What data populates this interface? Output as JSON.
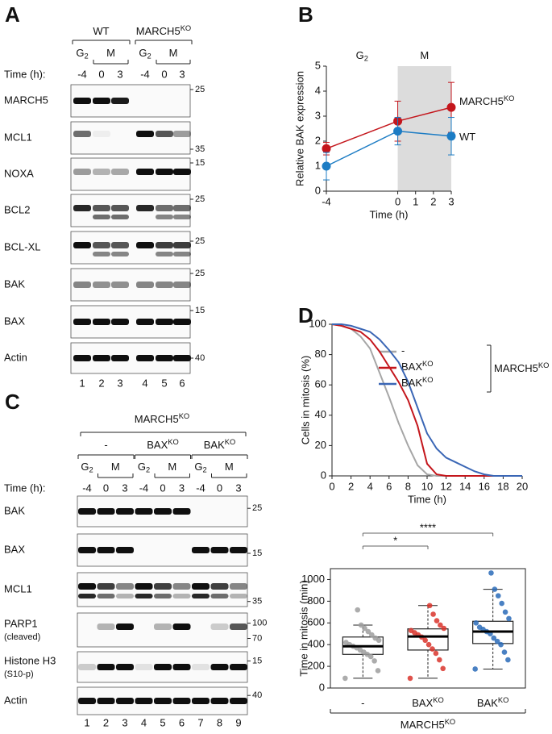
{
  "panel_a": {
    "label": "A",
    "groups": [
      {
        "text": "WT"
      },
      {
        "text": "MARCH5",
        "sup": "KO"
      }
    ],
    "phases": [
      {
        "text": "G",
        "sub": "2"
      },
      {
        "text": "M"
      },
      {
        "text": "G",
        "sub": "2"
      },
      {
        "text": "M"
      }
    ],
    "time_label": "Time (h):",
    "times": [
      -4,
      0,
      3,
      -4,
      0,
      3
    ],
    "rows": [
      {
        "name": "MARCH5",
        "markers": [
          25
        ]
      },
      {
        "name": "MCL1",
        "markers": [
          35
        ]
      },
      {
        "name": "NOXA",
        "markers": [
          15
        ]
      },
      {
        "name": "BCL2",
        "markers": [
          25
        ]
      },
      {
        "name": "BCL-XL",
        "markers": [
          25
        ]
      },
      {
        "name": "BAK",
        "markers": [
          25
        ]
      },
      {
        "name": "BAX",
        "markers": [
          15
        ]
      },
      {
        "name": "Actin",
        "markers": [
          40
        ]
      }
    ],
    "lanes": [
      1,
      2,
      3,
      4,
      5,
      6
    ]
  },
  "panel_c": {
    "label": "C",
    "header": {
      "text": "MARCH5",
      "sup": "KO"
    },
    "groups": [
      {
        "text": "-"
      },
      {
        "text": "BAX",
        "sup": "KO"
      },
      {
        "text": "BAK",
        "sup": "KO"
      }
    ],
    "phases": [
      {
        "text": "G",
        "sub": "2"
      },
      {
        "text": "M"
      },
      {
        "text": "G",
        "sub": "2"
      },
      {
        "text": "M"
      },
      {
        "text": "G",
        "sub": "2"
      },
      {
        "text": "M"
      }
    ],
    "time_label": "Time (h):",
    "times": [
      -4,
      0,
      3,
      -4,
      0,
      3,
      -4,
      0,
      3
    ],
    "rows": [
      {
        "name": "BAK",
        "markers": [
          25
        ]
      },
      {
        "name": "BAX",
        "markers": [
          15
        ]
      },
      {
        "name": "MCL1",
        "markers": [
          35
        ]
      },
      {
        "name": "PARP1",
        "note": "(cleaved)",
        "markers": [
          100,
          70
        ]
      },
      {
        "name": "Histone H3",
        "note": "(S10-p)",
        "markers": [
          15
        ]
      },
      {
        "name": "Actin",
        "markers": [
          40
        ]
      }
    ],
    "lanes": [
      1,
      2,
      3,
      4,
      5,
      6,
      7,
      8,
      9
    ]
  },
  "chart_data": [
    {
      "type": "line",
      "label": "B",
      "ylabel": "Relative BAK expression",
      "xlabel": "Time (h)",
      "x": [
        -4,
        0,
        3
      ],
      "xlim": [
        -4,
        3
      ],
      "xticks": [
        -4,
        0,
        1,
        2,
        3
      ],
      "ylim": [
        0,
        5
      ],
      "yticks": [
        0,
        1,
        2,
        3,
        4,
        5
      ],
      "shaded": {
        "from": 0,
        "to": 3,
        "color": "#dcdcdc"
      },
      "annotations": [
        {
          "text": "G",
          "sub": "2"
        },
        {
          "text": "M"
        }
      ],
      "series": [
        {
          "name": "MARCH5",
          "name_sup": "KO",
          "color": "#c4161c",
          "values": [
            1.7,
            2.8,
            3.35
          ],
          "errors": [
            0.25,
            0.8,
            1.0
          ]
        },
        {
          "name": "WT",
          "color": "#1c7cc4",
          "values": [
            1.0,
            2.4,
            2.2
          ],
          "errors": [
            0.55,
            0.55,
            0.75
          ]
        }
      ]
    },
    {
      "type": "line",
      "label": "D",
      "ylabel": "Cells in mitosis (%)",
      "xlabel": "Time (h)",
      "x": [
        0,
        1,
        2,
        3,
        4,
        5,
        6,
        7,
        8,
        9,
        10,
        11,
        12,
        13,
        14,
        15,
        16,
        17,
        18,
        19,
        20
      ],
      "xlim": [
        0,
        20
      ],
      "xticks": [
        0,
        2,
        4,
        6,
        8,
        10,
        12,
        14,
        16,
        18,
        20
      ],
      "ylim": [
        0,
        100
      ],
      "yticks": [
        0,
        20,
        40,
        60,
        80,
        100
      ],
      "legend_group": {
        "text": "MARCH5",
        "sup": "KO"
      },
      "series": [
        {
          "name": "-",
          "color": "#a6a6a6",
          "values": [
            100,
            99,
            97,
            92,
            84,
            68,
            52,
            35,
            20,
            7,
            1,
            0,
            0,
            0,
            0,
            0,
            0,
            0,
            0,
            0,
            0
          ]
        },
        {
          "name": "BAX",
          "name_sup": "KO",
          "color": "#c4161c",
          "values": [
            100,
            99,
            97,
            95,
            90,
            82,
            72,
            62,
            50,
            33,
            8,
            1,
            0,
            0,
            0,
            0,
            0,
            0,
            0,
            0,
            0
          ]
        },
        {
          "name": "BAK",
          "name_sup": "KO",
          "color": "#3a66b5",
          "values": [
            100,
            100,
            99,
            97,
            95,
            90,
            83,
            75,
            62,
            45,
            28,
            18,
            12,
            9,
            6,
            3,
            1,
            0,
            0,
            0,
            0
          ]
        }
      ]
    },
    {
      "type": "box",
      "ylabel": "Time in mitosis (min)",
      "ylim": [
        0,
        1100
      ],
      "yticks": [
        0,
        200,
        400,
        600,
        800,
        1000
      ],
      "footer": {
        "text": "MARCH5",
        "sup": "KO"
      },
      "groups": [
        {
          "text": "-",
          "color": "#9e9e9e",
          "label_color": "#111111",
          "min": 90,
          "q1": 310,
          "median": 385,
          "q3": 470,
          "max": 580,
          "points": [
            90,
            160,
            250,
            290,
            310,
            330,
            350,
            370,
            385,
            400,
            420,
            440,
            460,
            490,
            520,
            550,
            580,
            720
          ]
        },
        {
          "text": "BAX",
          "sup": "KO",
          "color": "#d9342b",
          "label_color": "#c4161c",
          "min": 90,
          "q1": 350,
          "median": 475,
          "q3": 545,
          "max": 760,
          "sig": "*",
          "points": [
            90,
            180,
            260,
            320,
            360,
            400,
            440,
            470,
            490,
            510,
            530,
            550,
            580,
            620,
            680,
            760
          ]
        },
        {
          "text": "BAK",
          "sup": "KO",
          "color": "#2a6bb8",
          "label_color": "#3a66b5",
          "min": 175,
          "q1": 410,
          "median": 520,
          "q3": 615,
          "max": 910,
          "sig": "****",
          "points": [
            175,
            260,
            330,
            400,
            430,
            460,
            500,
            520,
            540,
            560,
            600,
            640,
            700,
            780,
            850,
            910,
            1060
          ]
        }
      ]
    }
  ]
}
